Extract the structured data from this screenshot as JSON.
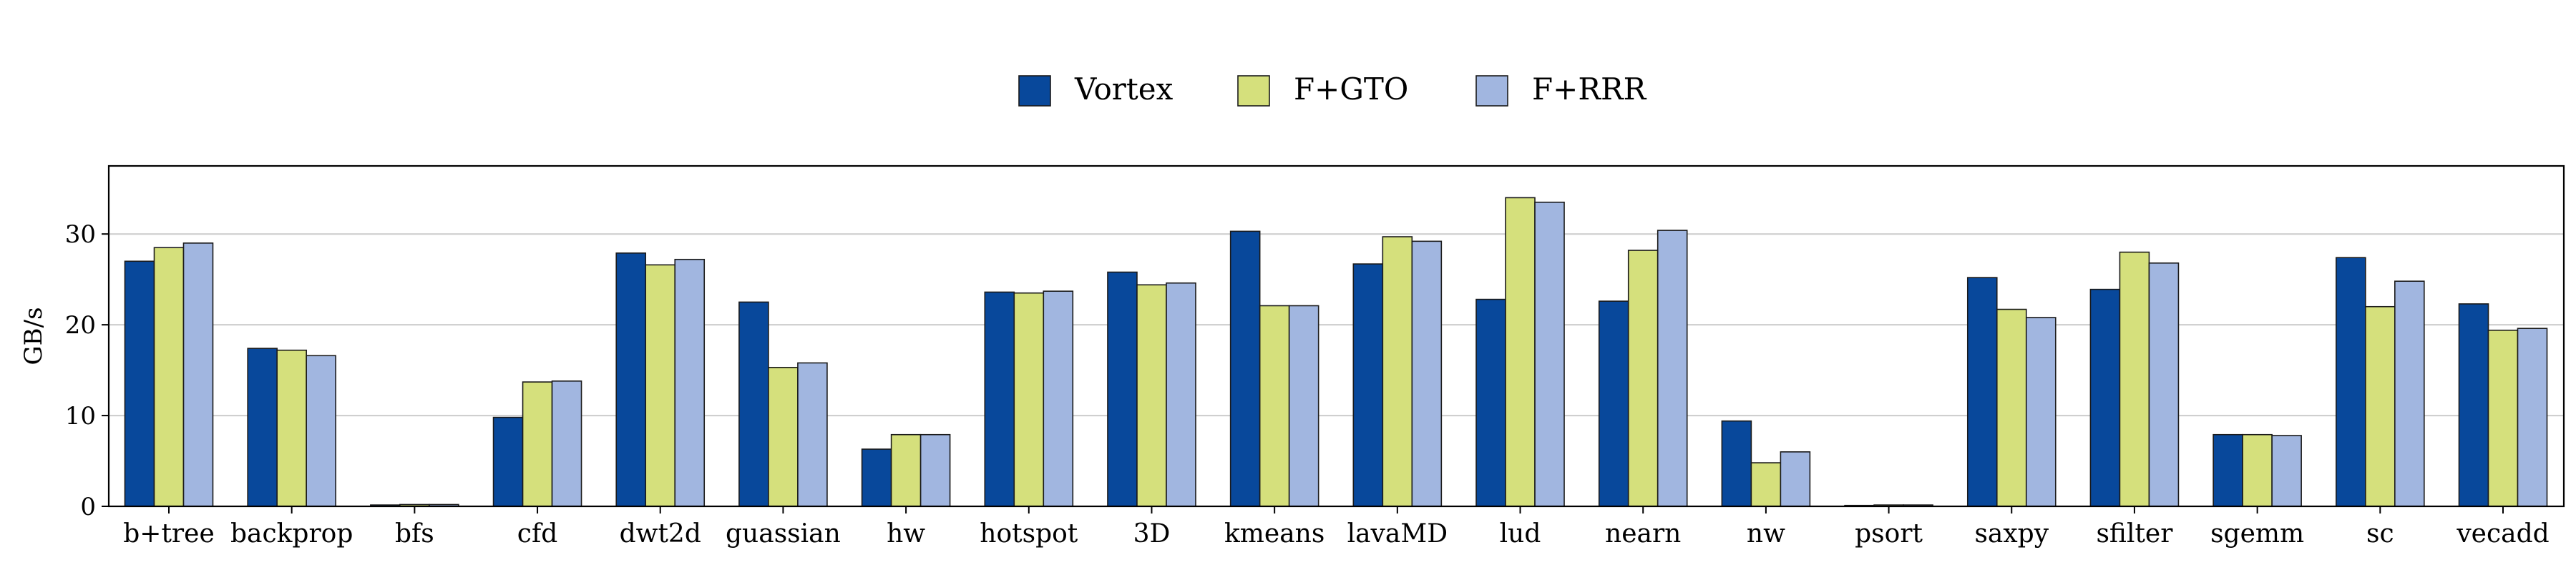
{
  "chart_data": {
    "type": "bar",
    "ylabel": "GB/s",
    "xlabel": "",
    "ylim": [
      0,
      37.5
    ],
    "yticks": [
      0,
      10,
      20,
      30
    ],
    "grid": "horizontal",
    "legend_position": "top-center",
    "categories": [
      "b+tree",
      "backprop",
      "bfs",
      "cfd",
      "dwt2d",
      "guassian",
      "hw",
      "hotspot",
      "3D",
      "kmeans",
      "lavaMD",
      "lud",
      "nearn",
      "nw",
      "psort",
      "saxpy",
      "sfilter",
      "sgemm",
      "sc",
      "vecadd"
    ],
    "series": [
      {
        "name": "Vortex",
        "color": "#08489b",
        "values": [
          27.0,
          17.4,
          0.15,
          9.8,
          27.9,
          22.5,
          6.3,
          23.6,
          25.8,
          30.3,
          26.7,
          22.8,
          22.6,
          9.4,
          0.1,
          25.2,
          23.9,
          7.9,
          27.4,
          22.3
        ]
      },
      {
        "name": "F+GTO",
        "color": "#d5e07c",
        "values": [
          28.5,
          17.2,
          0.2,
          13.7,
          26.6,
          15.3,
          7.9,
          23.5,
          24.4,
          22.1,
          29.7,
          34.0,
          28.2,
          4.8,
          0.15,
          21.7,
          28.0,
          7.9,
          22.0,
          19.4
        ]
      },
      {
        "name": "F+RRR",
        "color": "#a1b6e0",
        "values": [
          29.0,
          16.6,
          0.2,
          13.8,
          27.2,
          15.8,
          7.9,
          23.7,
          24.6,
          22.1,
          29.2,
          33.5,
          30.4,
          6.0,
          0.15,
          20.8,
          26.8,
          7.8,
          24.8,
          19.6
        ]
      }
    ]
  }
}
